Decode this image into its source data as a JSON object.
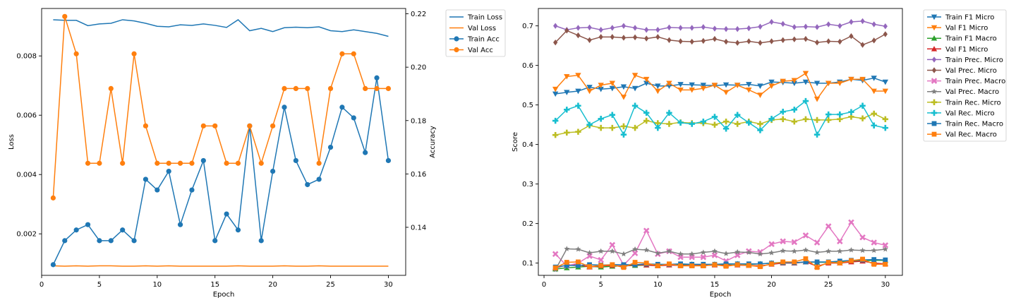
{
  "chart_data": [
    {
      "type": "line",
      "x": [
        1,
        2,
        3,
        4,
        5,
        6,
        7,
        8,
        9,
        10,
        11,
        12,
        13,
        14,
        15,
        16,
        17,
        18,
        19,
        20,
        21,
        22,
        23,
        24,
        25,
        26,
        27,
        28,
        29,
        30
      ],
      "xlabel": "Epoch",
      "ylabel_left": "Loss",
      "ylabel_right": "Accuracy",
      "xlim": [
        0,
        31.5
      ],
      "ylim_left": [
        0.0006,
        0.0096
      ],
      "ylim_right": [
        0.122,
        0.222
      ],
      "xticks": [
        0,
        5,
        10,
        15,
        20,
        25,
        30
      ],
      "yticks_left": [
        0.002,
        0.004,
        0.006,
        0.008
      ],
      "yticks_right": [
        0.14,
        0.16,
        0.18,
        0.2,
        0.22
      ],
      "legend": "outside-top-right",
      "series": [
        {
          "name": "Train Loss",
          "axis": "left",
          "color": "#1f77b4",
          "marker": "none",
          "values": [
            0.00922,
            0.0092,
            0.0092,
            0.00902,
            0.00908,
            0.0091,
            0.00922,
            0.00918,
            0.0091,
            0.009,
            0.00898,
            0.00905,
            0.00903,
            0.00908,
            0.00903,
            0.00896,
            0.00922,
            0.00885,
            0.00893,
            0.00882,
            0.00895,
            0.00897,
            0.00895,
            0.00898,
            0.00885,
            0.00882,
            0.00888,
            0.00882,
            0.00876,
            0.00866
          ]
        },
        {
          "name": "Val Loss",
          "axis": "left",
          "color": "#ff7f0e",
          "marker": "none",
          "values": [
            0.00092,
            0.00091,
            0.00092,
            0.00091,
            0.00092,
            0.00092,
            0.00091,
            0.00091,
            0.00092,
            0.00091,
            0.00092,
            0.00091,
            0.00091,
            0.00091,
            0.00091,
            0.00091,
            0.00092,
            0.00091,
            0.00091,
            0.00091,
            0.00092,
            0.00091,
            0.00091,
            0.00092,
            0.00091,
            0.00091,
            0.00091,
            0.00091,
            0.00091,
            0.00091
          ]
        },
        {
          "name": "Train Acc",
          "axis": "right",
          "color": "#1f77b4",
          "marker": "circle",
          "values": [
            0.126,
            0.135,
            0.139,
            0.141,
            0.135,
            0.135,
            0.139,
            0.135,
            0.158,
            0.154,
            0.161,
            0.141,
            0.154,
            0.165,
            0.135,
            0.145,
            0.139,
            0.178,
            0.135,
            0.161,
            0.185,
            0.165,
            0.156,
            0.158,
            0.17,
            0.185,
            0.181,
            0.168,
            0.196,
            0.165
          ]
        },
        {
          "name": "Val Acc",
          "axis": "right",
          "color": "#ff7f0e",
          "marker": "circle",
          "values": [
            0.151,
            0.219,
            0.205,
            0.164,
            0.164,
            0.192,
            0.164,
            0.205,
            0.178,
            0.164,
            0.164,
            0.164,
            0.164,
            0.178,
            0.178,
            0.164,
            0.164,
            0.178,
            0.164,
            0.178,
            0.192,
            0.192,
            0.192,
            0.164,
            0.192,
            0.205,
            0.205,
            0.192,
            0.192,
            0.192
          ]
        }
      ]
    },
    {
      "type": "line",
      "x": [
        1,
        2,
        3,
        4,
        5,
        6,
        7,
        8,
        9,
        10,
        11,
        12,
        13,
        14,
        15,
        16,
        17,
        18,
        19,
        20,
        21,
        22,
        23,
        24,
        25,
        26,
        27,
        28,
        29,
        30
      ],
      "xlabel": "Epoch",
      "ylabel": "Score",
      "xlim": [
        -0.5,
        31.5
      ],
      "ylim": [
        0.069,
        0.744
      ],
      "xticks": [
        0,
        5,
        10,
        15,
        20,
        25,
        30
      ],
      "yticks": [
        0.1,
        0.2,
        0.3,
        0.4,
        0.5,
        0.6,
        0.7
      ],
      "legend": "outside-top-right",
      "series": [
        {
          "name": "Train F1 Micro",
          "color": "#1f77b4",
          "marker": "triangle_down",
          "values": [
            0.528,
            0.532,
            0.535,
            0.545,
            0.54,
            0.542,
            0.546,
            0.542,
            0.555,
            0.548,
            0.548,
            0.552,
            0.551,
            0.55,
            0.549,
            0.551,
            0.55,
            0.552,
            0.548,
            0.558,
            0.557,
            0.555,
            0.558,
            0.555,
            0.555,
            0.558,
            0.565,
            0.562,
            0.568,
            0.558
          ]
        },
        {
          "name": "Val F1 Micro",
          "color": "#ff7f0e",
          "marker": "triangle_down",
          "values": [
            0.54,
            0.572,
            0.575,
            0.535,
            0.55,
            0.555,
            0.52,
            0.575,
            0.565,
            0.535,
            0.555,
            0.538,
            0.538,
            0.542,
            0.55,
            0.532,
            0.55,
            0.538,
            0.525,
            0.548,
            0.56,
            0.562,
            0.58,
            0.515,
            0.555,
            0.555,
            0.565,
            0.565,
            0.535,
            0.535
          ]
        },
        {
          "name": "Train F1 Macro",
          "color": "#2ca02c",
          "marker": "triangle_up",
          "values": [
            0.085,
            0.088,
            0.09,
            0.092,
            0.09,
            0.092,
            0.093,
            0.094,
            0.095,
            0.095,
            0.096,
            0.096,
            0.097,
            0.096,
            0.097,
            0.097,
            0.098,
            0.097,
            0.098,
            0.1,
            0.102,
            0.1,
            0.103,
            0.102,
            0.102,
            0.104,
            0.105,
            0.106,
            0.107,
            0.107
          ]
        },
        {
          "name": "Val F1 Micro",
          "color": "#d62728",
          "marker": "triangle_up",
          "values": [
            0.088,
            0.095,
            0.096,
            0.09,
            0.093,
            0.094,
            0.092,
            0.096,
            0.095,
            0.093,
            0.095,
            0.094,
            0.094,
            0.094,
            0.095,
            0.094,
            0.095,
            0.094,
            0.093,
            0.097,
            0.1,
            0.1,
            0.103,
            0.092,
            0.1,
            0.1,
            0.103,
            0.105,
            0.1,
            0.098
          ]
        },
        {
          "name": "Train Prec. Micro",
          "color": "#9467bd",
          "marker": "diamond",
          "values": [
            0.7,
            0.69,
            0.695,
            0.696,
            0.69,
            0.695,
            0.7,
            0.695,
            0.69,
            0.69,
            0.696,
            0.695,
            0.695,
            0.697,
            0.693,
            0.692,
            0.692,
            0.694,
            0.698,
            0.71,
            0.705,
            0.697,
            0.698,
            0.697,
            0.704,
            0.7,
            0.71,
            0.712,
            0.704,
            0.699
          ]
        },
        {
          "name": "Val Prec. Micro",
          "color": "#8c564b",
          "marker": "diamond",
          "values": [
            0.658,
            0.688,
            0.676,
            0.664,
            0.672,
            0.672,
            0.67,
            0.671,
            0.668,
            0.672,
            0.664,
            0.661,
            0.66,
            0.662,
            0.667,
            0.66,
            0.657,
            0.661,
            0.657,
            0.661,
            0.664,
            0.666,
            0.667,
            0.658,
            0.661,
            0.66,
            0.674,
            0.652,
            0.663,
            0.679
          ]
        },
        {
          "name": "Train Prec. Macro",
          "color": "#e377c2",
          "marker": "x",
          "values": [
            0.123,
            0.093,
            0.1,
            0.118,
            0.108,
            0.146,
            0.095,
            0.125,
            0.182,
            0.123,
            0.13,
            0.115,
            0.115,
            0.115,
            0.12,
            0.105,
            0.12,
            0.13,
            0.128,
            0.148,
            0.155,
            0.153,
            0.17,
            0.152,
            0.193,
            0.155,
            0.203,
            0.165,
            0.152,
            0.145
          ]
        },
        {
          "name": "Val Prec. Macro",
          "color": "#7f7f7f",
          "marker": "star",
          "values": [
            0.083,
            0.136,
            0.135,
            0.126,
            0.13,
            0.13,
            0.123,
            0.135,
            0.133,
            0.125,
            0.13,
            0.123,
            0.123,
            0.127,
            0.13,
            0.124,
            0.128,
            0.127,
            0.123,
            0.126,
            0.131,
            0.13,
            0.133,
            0.127,
            0.13,
            0.13,
            0.133,
            0.132,
            0.132,
            0.135
          ]
        },
        {
          "name": "Train Rec. Micro",
          "color": "#bcbd22",
          "marker": "plus",
          "values": [
            0.424,
            0.43,
            0.432,
            0.448,
            0.442,
            0.442,
            0.446,
            0.442,
            0.46,
            0.454,
            0.452,
            0.456,
            0.454,
            0.454,
            0.45,
            0.458,
            0.452,
            0.458,
            0.452,
            0.462,
            0.464,
            0.458,
            0.464,
            0.462,
            0.462,
            0.464,
            0.47,
            0.466,
            0.478,
            0.464
          ]
        },
        {
          "name": "Val Rec. Micro",
          "color": "#17becf",
          "marker": "plus",
          "values": [
            0.46,
            0.488,
            0.498,
            0.45,
            0.465,
            0.475,
            0.425,
            0.498,
            0.48,
            0.442,
            0.48,
            0.455,
            0.452,
            0.458,
            0.47,
            0.44,
            0.475,
            0.455,
            0.436,
            0.465,
            0.483,
            0.488,
            0.51,
            0.425,
            0.476,
            0.476,
            0.482,
            0.498,
            0.448,
            0.442
          ]
        },
        {
          "name": "Train Rec. Macro",
          "color": "#1f77b4",
          "marker": "square",
          "values": [
            0.09,
            0.094,
            0.094,
            0.096,
            0.095,
            0.096,
            0.096,
            0.096,
            0.098,
            0.097,
            0.097,
            0.098,
            0.097,
            0.097,
            0.097,
            0.098,
            0.098,
            0.098,
            0.098,
            0.1,
            0.101,
            0.101,
            0.103,
            0.103,
            0.103,
            0.105,
            0.107,
            0.108,
            0.109,
            0.108
          ]
        },
        {
          "name": "Val Rec. Macro",
          "color": "#ff7f0e",
          "marker": "square",
          "values": [
            0.088,
            0.102,
            0.103,
            0.091,
            0.094,
            0.096,
            0.089,
            0.102,
            0.1,
            0.093,
            0.098,
            0.093,
            0.093,
            0.093,
            0.096,
            0.092,
            0.096,
            0.094,
            0.091,
            0.098,
            0.103,
            0.103,
            0.111,
            0.089,
            0.102,
            0.1,
            0.106,
            0.11,
            0.097,
            0.097
          ]
        }
      ]
    }
  ]
}
